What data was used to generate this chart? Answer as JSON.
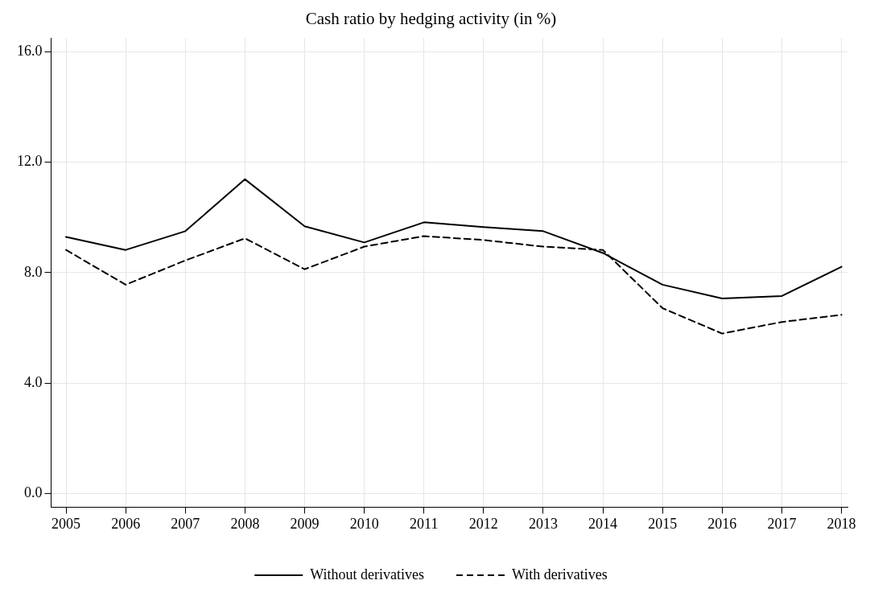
{
  "chart_data": {
    "type": "line",
    "title": "Cash ratio by hedging activity (in %)",
    "x": [
      2005,
      2006,
      2007,
      2008,
      2009,
      2010,
      2011,
      2012,
      2013,
      2014,
      2015,
      2016,
      2017,
      2018
    ],
    "series": [
      {
        "name": "Without derivatives",
        "color": "#000000",
        "line_style": "solid",
        "values": [
          9.29,
          8.82,
          9.5,
          11.38,
          9.68,
          9.09,
          9.82,
          9.65,
          9.5,
          8.71,
          7.56,
          7.06,
          7.15,
          8.21
        ]
      },
      {
        "name": "With derivatives",
        "color": "#000000",
        "line_style": "dashed",
        "values": [
          8.82,
          7.56,
          8.44,
          9.24,
          8.12,
          8.94,
          9.32,
          9.18,
          8.94,
          8.82,
          6.71,
          5.79,
          6.21,
          6.47
        ]
      }
    ],
    "xlim": [
      2004.75,
      2018.1
    ],
    "xticks": [
      2005,
      2006,
      2007,
      2008,
      2009,
      2010,
      2011,
      2012,
      2013,
      2014,
      2015,
      2016,
      2017,
      2018
    ],
    "ylim": [
      -0.5,
      16.5
    ],
    "yticks": [
      {
        "value": 0,
        "label": "0.0"
      },
      {
        "value": 4,
        "label": "4.0"
      },
      {
        "value": 8,
        "label": "8.0"
      },
      {
        "value": 12,
        "label": "12.0"
      },
      {
        "value": 16,
        "label": "16.0"
      }
    ],
    "grid": true,
    "legend": "bottom",
    "marker": "none"
  }
}
